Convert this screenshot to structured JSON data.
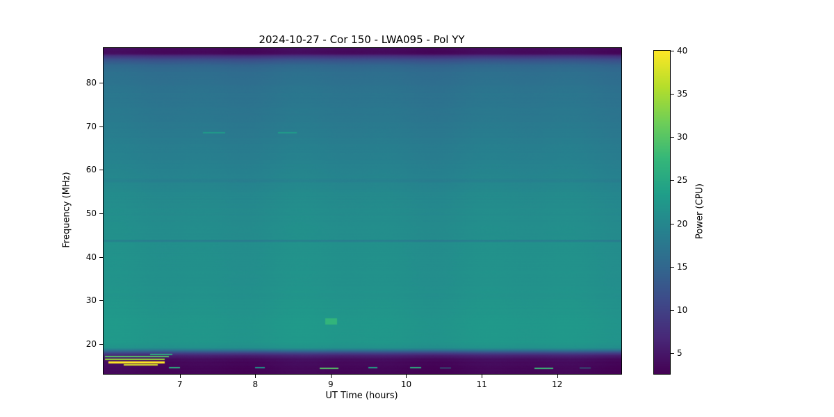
{
  "figure": {
    "title": "2024-10-27 - Cor 150 - LWA095 - Pol YY",
    "xlabel": "UT Time (hours)",
    "ylabel": "Frequency (MHz)",
    "colorbar_label": "Power (CPU)"
  },
  "chart_data": {
    "type": "heatmap",
    "title": "2024-10-27 - Cor 150 - LWA095 - Pol YY",
    "xlabel": "UT Time (hours)",
    "ylabel": "Frequency (MHz)",
    "x_range": [
      5.99,
      12.85
    ],
    "y_range": [
      13.1,
      88.0
    ],
    "x_ticks": [
      7,
      8,
      9,
      10,
      11,
      12
    ],
    "y_ticks": [
      20,
      30,
      40,
      50,
      60,
      70,
      80
    ],
    "colorbar": {
      "label": "Power (CPU)",
      "ticks": [
        5,
        10,
        15,
        20,
        25,
        30,
        35,
        40
      ],
      "range": [
        2.6,
        40
      ],
      "colormap": "viridis"
    },
    "background_profile_freq_power": [
      [
        88.0,
        3.5
      ],
      [
        86.8,
        3.5
      ],
      [
        86.2,
        8.0
      ],
      [
        85.3,
        12.0
      ],
      [
        84.0,
        15.0
      ],
      [
        82.0,
        16.2
      ],
      [
        78.0,
        17.0
      ],
      [
        72.0,
        17.6
      ],
      [
        66.0,
        18.4
      ],
      [
        60.0,
        19.3
      ],
      [
        58.0,
        19.6
      ],
      [
        57.5,
        18.5
      ],
      [
        57.0,
        19.8
      ],
      [
        52.0,
        20.6
      ],
      [
        45.0,
        21.0
      ],
      [
        44.0,
        21.0
      ],
      [
        43.7,
        17.8
      ],
      [
        43.3,
        21.2
      ],
      [
        38.0,
        21.4
      ],
      [
        32.0,
        21.6
      ],
      [
        28.0,
        22.0
      ],
      [
        24.0,
        22.4
      ],
      [
        20.5,
        22.3
      ],
      [
        19.0,
        21.5
      ],
      [
        18.4,
        16.0
      ],
      [
        17.8,
        10.0
      ],
      [
        17.2,
        6.0
      ],
      [
        16.4,
        4.0
      ],
      [
        15.6,
        3.4
      ],
      [
        13.1,
        3.0
      ]
    ],
    "features": [
      {
        "x": [
          6.0,
          6.85
        ],
        "f": [
          16.9,
          17.2
        ],
        "p": 30,
        "note": "RFI streak lower-left"
      },
      {
        "x": [
          6.0,
          6.8
        ],
        "f": [
          16.2,
          16.5
        ],
        "p": 34,
        "note": "RFI streak lower-left"
      },
      {
        "x": [
          6.05,
          6.8
        ],
        "f": [
          15.5,
          15.9
        ],
        "p": 40,
        "note": "bright yellow RFI streak"
      },
      {
        "x": [
          6.25,
          6.7
        ],
        "f": [
          15.0,
          15.3
        ],
        "p": 38,
        "note": "bright yellow RFI streak"
      },
      {
        "x": [
          6.6,
          6.9
        ],
        "f": [
          17.4,
          17.7
        ],
        "p": 26,
        "note": "short RFI dash"
      },
      {
        "x": [
          8.93,
          9.08
        ],
        "f": [
          24.4,
          25.8
        ],
        "p": 27,
        "note": "bright green patch near 9h / 25 MHz"
      },
      {
        "x": [
          7.3,
          7.6
        ],
        "f": [
          68.4,
          68.7
        ],
        "p": 23,
        "note": "faint line 68.5 MHz"
      },
      {
        "x": [
          8.3,
          8.55
        ],
        "f": [
          68.4,
          68.7
        ],
        "p": 23,
        "note": "faint line 68.5 MHz"
      },
      {
        "x": [
          6.85,
          7.0
        ],
        "f": [
          14.3,
          14.6
        ],
        "p": 26,
        "note": "bottom dash"
      },
      {
        "x": [
          8.0,
          8.12
        ],
        "f": [
          14.3,
          14.6
        ],
        "p": 22,
        "note": "bottom dash"
      },
      {
        "x": [
          8.85,
          9.1
        ],
        "f": [
          14.2,
          14.5
        ],
        "p": 30,
        "note": "bottom dash"
      },
      {
        "x": [
          9.5,
          9.62
        ],
        "f": [
          14.3,
          14.55
        ],
        "p": 24,
        "note": "bottom dash"
      },
      {
        "x": [
          10.05,
          10.2
        ],
        "f": [
          14.3,
          14.55
        ],
        "p": 26,
        "note": "bottom dash"
      },
      {
        "x": [
          10.45,
          10.6
        ],
        "f": [
          14.3,
          14.5
        ],
        "p": 22,
        "note": "bottom dash"
      },
      {
        "x": [
          11.7,
          11.95
        ],
        "f": [
          14.2,
          14.45
        ],
        "p": 28,
        "note": "bottom dash"
      },
      {
        "x": [
          12.3,
          12.45
        ],
        "f": [
          14.3,
          14.5
        ],
        "p": 22,
        "note": "bottom dash"
      }
    ]
  }
}
